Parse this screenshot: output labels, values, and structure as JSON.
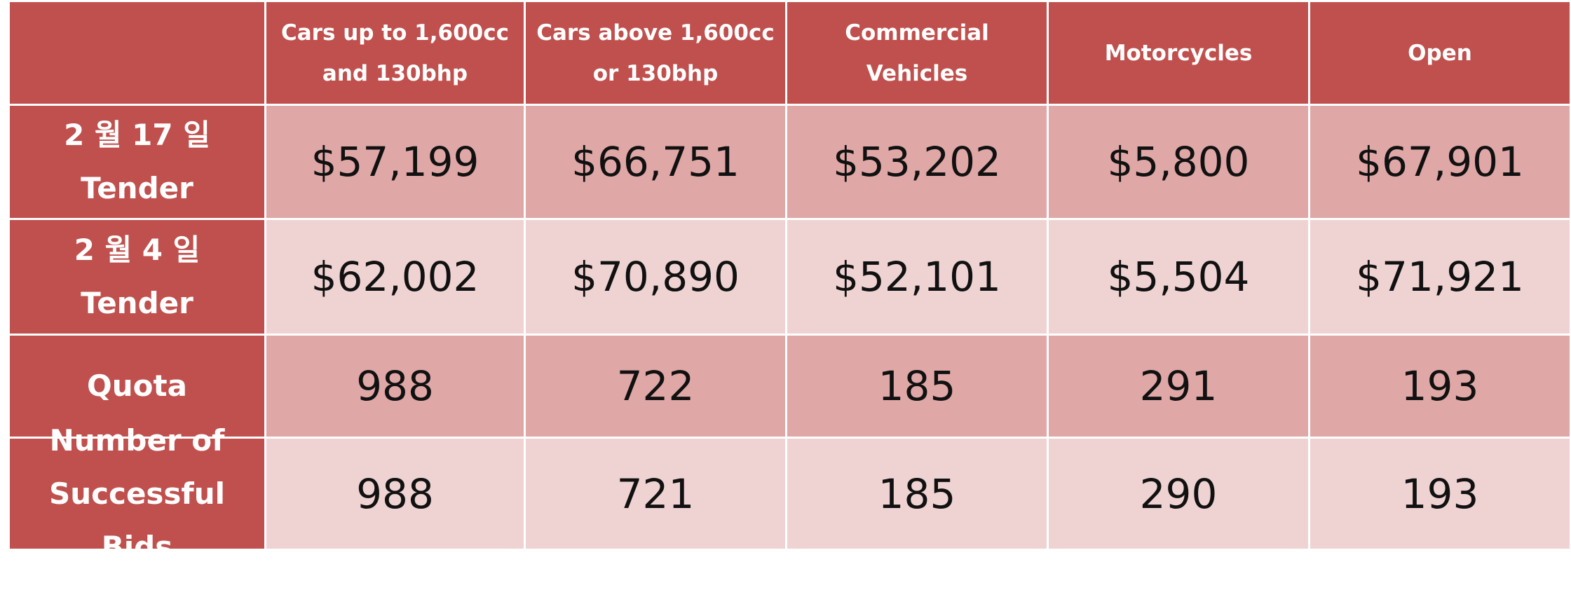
{
  "table": {
    "headers": [
      "",
      "Cars up to 1,600cc and 130bhp",
      "Cars above 1,600cc or 130bhp",
      "Commercial Vehicles",
      "Motorcycles",
      "Open"
    ],
    "rows": [
      {
        "label": "2 월 17 일 Tender",
        "values": [
          "$57,199",
          "$66,751",
          "$53,202",
          "$5,800",
          "$67,901"
        ]
      },
      {
        "label": "2 월 4 일 Tender",
        "values": [
          "$62,002",
          "$70,890",
          "$52,101",
          "$5,504",
          "$71,921"
        ]
      },
      {
        "label": "Quota",
        "values": [
          "988",
          "722",
          "185",
          "291",
          "193"
        ]
      },
      {
        "label": "Number of Successful Bids",
        "values": [
          "988",
          "721",
          "185",
          "290",
          "193"
        ]
      }
    ]
  },
  "colors": {
    "header_bg": "#c0504d",
    "row_dark": "#dfa7a6",
    "row_light": "#efd3d2"
  }
}
